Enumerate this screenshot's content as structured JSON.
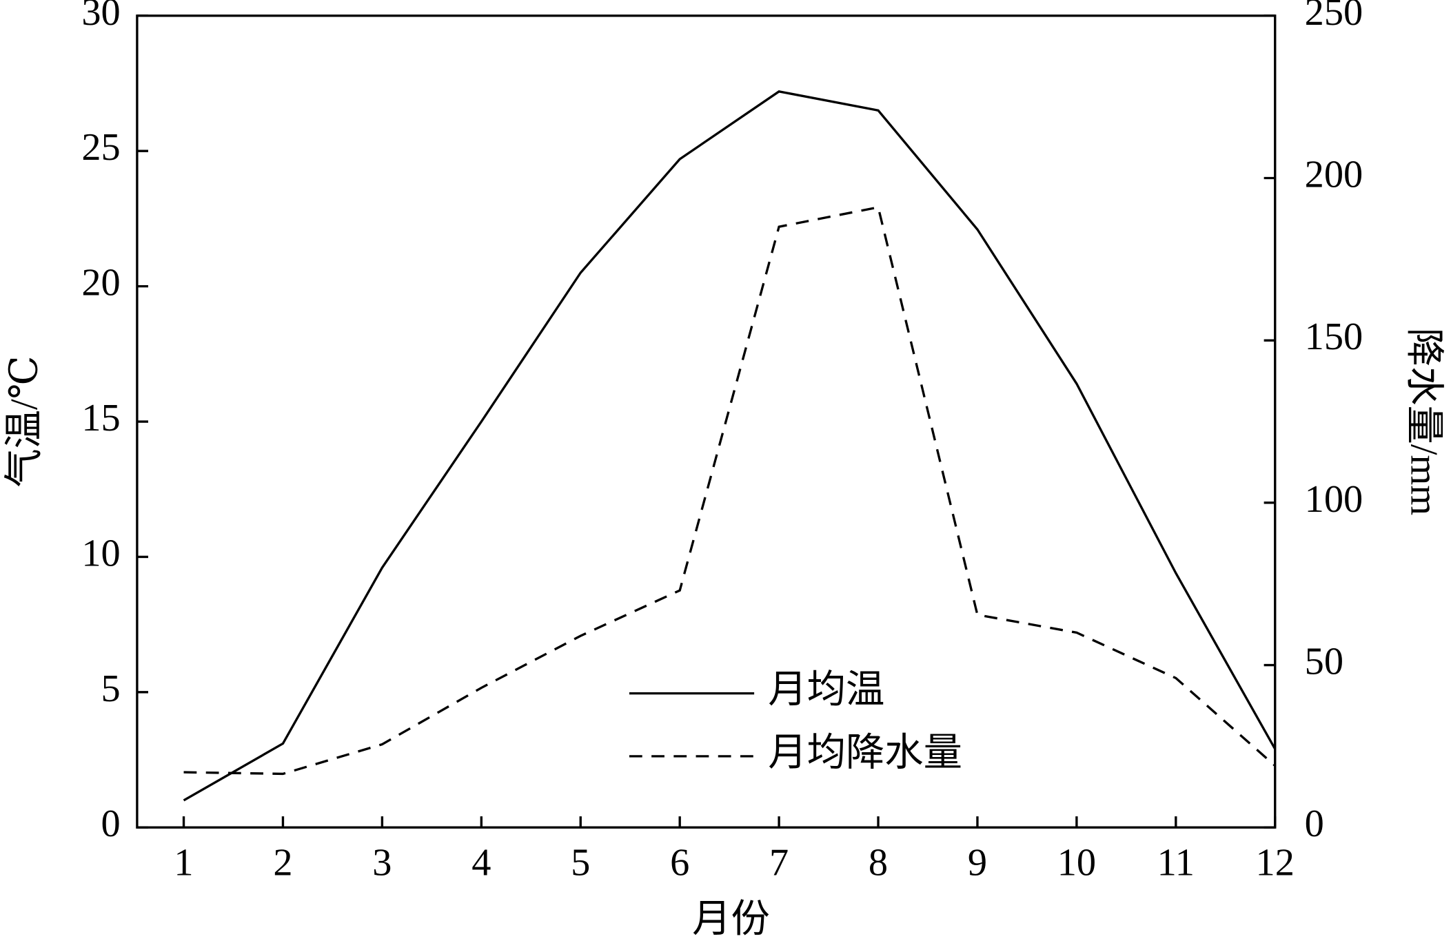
{
  "chart_data": {
    "type": "line",
    "x_label": "月份",
    "y_label": "气温/℃",
    "y2_label": "降水量/mm",
    "x": [
      1,
      2,
      3,
      4,
      5,
      6,
      7,
      8,
      9,
      10,
      11,
      12
    ],
    "xlim": [
      0.53,
      12
    ],
    "xticks": [
      1,
      2,
      3,
      4,
      5,
      6,
      7,
      8,
      9,
      10,
      11,
      12
    ],
    "ylim": [
      0,
      30
    ],
    "yticks": [
      0,
      5,
      10,
      15,
      20,
      25,
      30
    ],
    "y2lim": [
      0,
      250
    ],
    "y2ticks": [
      0,
      50,
      100,
      150,
      200,
      250
    ],
    "legend": "bottom-center",
    "series": [
      {
        "name": "月均温",
        "color": "#000000",
        "line_style": "solid",
        "values": [
          1.0,
          3.1,
          9.6,
          15.0,
          20.5,
          24.7,
          27.2,
          26.5,
          22.1,
          16.4,
          9.4,
          2.9
        ]
      },
      {
        "name": "月均降水量",
        "color": "#000000",
        "line_style": "dashed",
        "axis": "y2",
        "values": [
          17,
          16.5,
          25.6,
          43,
          59,
          73,
          185,
          191,
          65.5,
          60,
          46,
          19
        ]
      }
    ]
  }
}
